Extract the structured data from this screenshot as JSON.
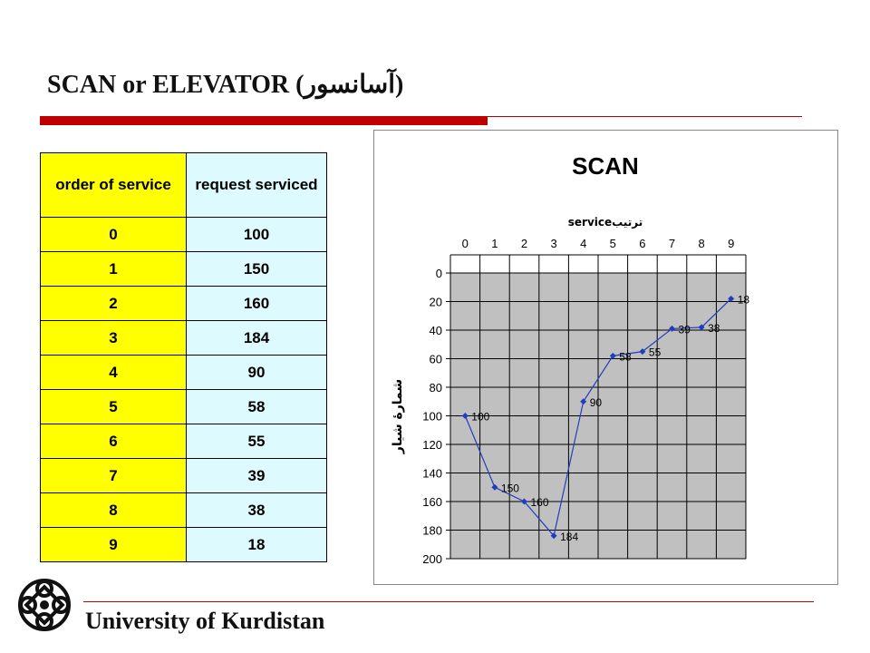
{
  "slide": {
    "title": "SCAN or ELEVATOR (آسانسور)"
  },
  "table": {
    "headers": [
      "order of service",
      "request serviced"
    ],
    "rows": [
      [
        "0",
        "100"
      ],
      [
        "1",
        "150"
      ],
      [
        "2",
        "160"
      ],
      [
        "3",
        "184"
      ],
      [
        "4",
        "90"
      ],
      [
        "5",
        "58"
      ],
      [
        "6",
        "55"
      ],
      [
        "7",
        "39"
      ],
      [
        "8",
        "38"
      ],
      [
        "9",
        "18"
      ]
    ]
  },
  "chart_data": {
    "type": "line",
    "title": "SCAN",
    "xlabel": "serviceترتیب",
    "ylabel": "شمارۀ شیار",
    "x": [
      0,
      1,
      2,
      3,
      4,
      5,
      6,
      7,
      8,
      9
    ],
    "y": [
      100,
      150,
      160,
      184,
      90,
      58,
      55,
      39,
      38,
      18
    ],
    "data_labels": [
      "100",
      "150",
      "160",
      "184",
      "90",
      "58",
      "55",
      "39",
      "38",
      "18"
    ],
    "xticks": [
      "0",
      "1",
      "2",
      "3",
      "4",
      "5",
      "6",
      "7",
      "8",
      "9"
    ],
    "yticks": [
      "0",
      "20",
      "40",
      "60",
      "80",
      "100",
      "120",
      "140",
      "160",
      "180",
      "200"
    ],
    "ylim": [
      0,
      200
    ],
    "y_inverted": true,
    "x_axis_position": "top",
    "grid": true,
    "legend": "none",
    "colors": {
      "line": "#1f3fbf",
      "plot_bg": "#c0c0c0",
      "grid": "#000000"
    }
  },
  "footer": {
    "university": "University of Kurdistan"
  }
}
